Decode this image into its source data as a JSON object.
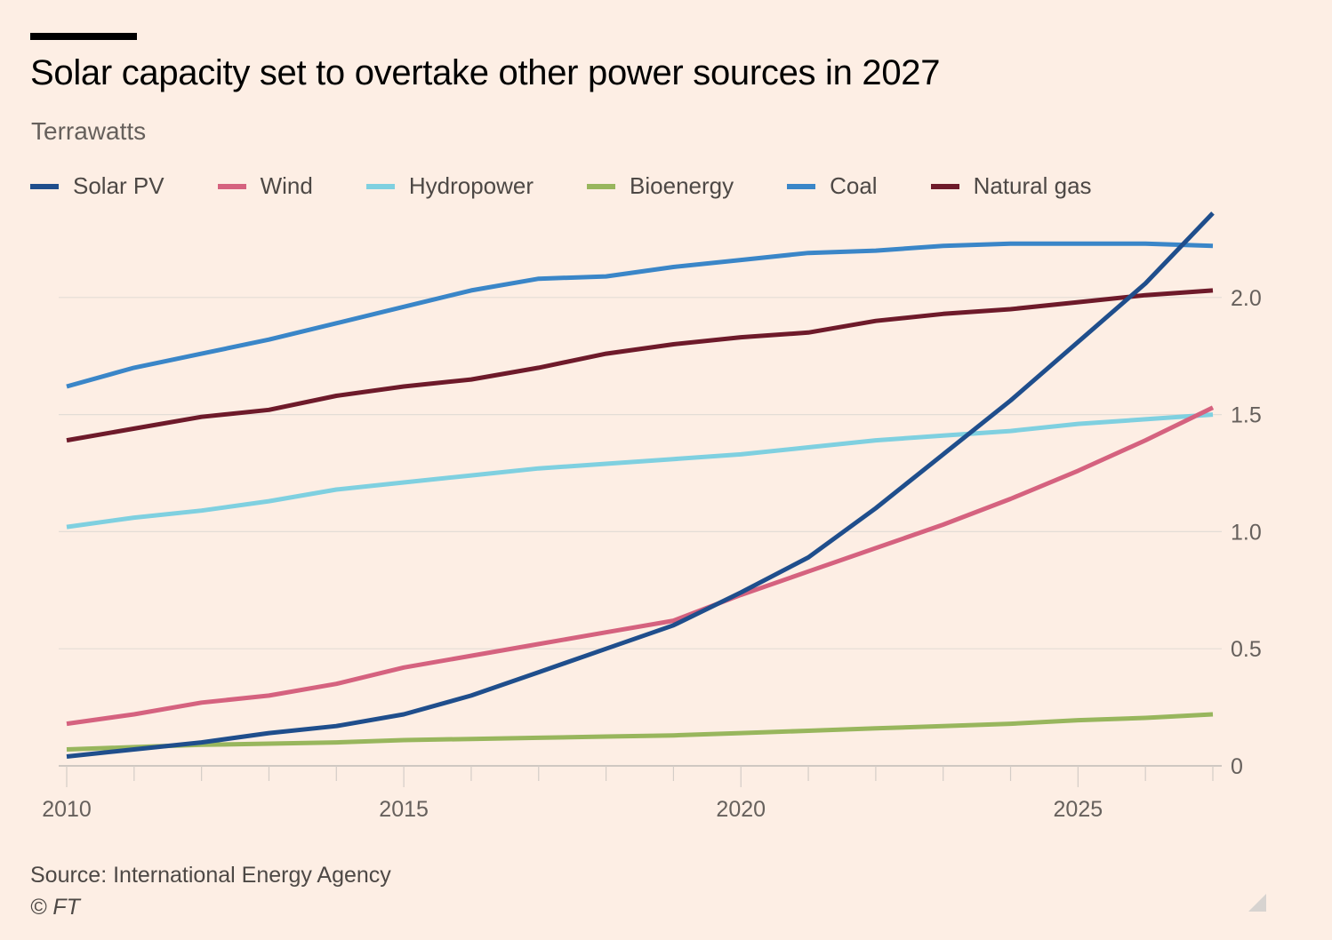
{
  "header": {
    "title": "Solar capacity set to overtake other power sources in 2027",
    "subtitle": "Terrawatts"
  },
  "footer": {
    "source": "Source: International Energy Agency",
    "copyright": "© FT"
  },
  "chart_data": {
    "type": "line",
    "title": "Solar capacity set to overtake other power sources in 2027",
    "ylabel": "Terrawatts",
    "xlabel": "",
    "x": [
      2010,
      2011,
      2012,
      2013,
      2014,
      2015,
      2016,
      2017,
      2018,
      2019,
      2020,
      2021,
      2022,
      2023,
      2024,
      2025,
      2026,
      2027
    ],
    "xlim": [
      2010,
      2027
    ],
    "ylim": [
      0,
      2.4
    ],
    "x_ticks": [
      "2010",
      "2015",
      "2020",
      "2025"
    ],
    "y_ticks": [
      "0",
      "0.5",
      "1.0",
      "1.5",
      "2.0"
    ],
    "y_tick_values": [
      0,
      0.5,
      1.0,
      1.5,
      2.0
    ],
    "grid": true,
    "y_axis_side": "right",
    "legend_position": "top",
    "series": [
      {
        "name": "Solar PV",
        "color": "#1f4e8c",
        "values": [
          0.04,
          0.07,
          0.1,
          0.14,
          0.17,
          0.22,
          0.3,
          0.4,
          0.5,
          0.6,
          0.74,
          0.89,
          1.1,
          1.33,
          1.56,
          1.81,
          2.06,
          2.36
        ]
      },
      {
        "name": "Wind",
        "color": "#d5627f",
        "values": [
          0.18,
          0.22,
          0.27,
          0.3,
          0.35,
          0.42,
          0.47,
          0.52,
          0.57,
          0.62,
          0.73,
          0.83,
          0.93,
          1.03,
          1.14,
          1.26,
          1.39,
          1.53
        ]
      },
      {
        "name": "Hydropower",
        "color": "#7fd0e0",
        "values": [
          1.02,
          1.06,
          1.09,
          1.13,
          1.18,
          1.21,
          1.24,
          1.27,
          1.29,
          1.31,
          1.33,
          1.36,
          1.39,
          1.41,
          1.43,
          1.46,
          1.48,
          1.5
        ]
      },
      {
        "name": "Bioenergy",
        "color": "#98b65d",
        "values": [
          0.07,
          0.08,
          0.09,
          0.095,
          0.1,
          0.11,
          0.115,
          0.12,
          0.125,
          0.13,
          0.14,
          0.15,
          0.16,
          0.17,
          0.18,
          0.195,
          0.205,
          0.22
        ]
      },
      {
        "name": "Coal",
        "color": "#3a86c8",
        "values": [
          1.62,
          1.7,
          1.76,
          1.82,
          1.89,
          1.96,
          2.03,
          2.08,
          2.09,
          2.13,
          2.16,
          2.19,
          2.2,
          2.22,
          2.23,
          2.23,
          2.23,
          2.22
        ]
      },
      {
        "name": "Natural gas",
        "color": "#6e1a2a",
        "values": [
          1.39,
          1.44,
          1.49,
          1.52,
          1.58,
          1.62,
          1.65,
          1.7,
          1.76,
          1.8,
          1.83,
          1.85,
          1.9,
          1.93,
          1.95,
          1.98,
          2.01,
          2.03
        ]
      }
    ]
  }
}
